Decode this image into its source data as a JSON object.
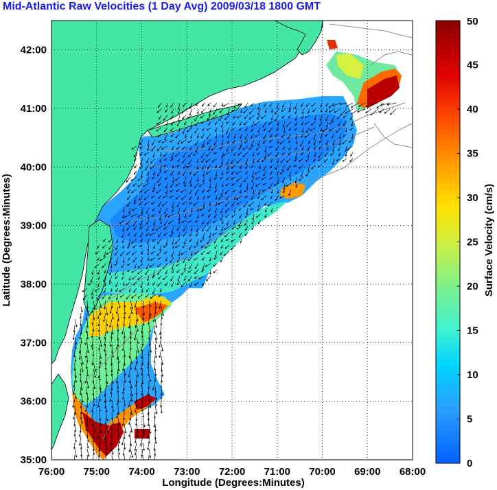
{
  "title": "Mid-Atlantic Raw Velocities (1 Day Avg) 2009/03/18 1800 GMT",
  "map": {
    "xlabel": "Longitude (Degrees:Minutes)",
    "ylabel": "Latitude (Degrees:Minutes)",
    "x_ticks": [
      "76:00",
      "75:00",
      "74:00",
      "73:00",
      "72:00",
      "71:00",
      "70:00",
      "69:00",
      "68:00"
    ],
    "y_ticks": [
      "35:00",
      "36:00",
      "37:00",
      "38:00",
      "39:00",
      "40:00",
      "41:00",
      "42:00"
    ],
    "xlim": [
      -76,
      -68
    ],
    "ylim": [
      35,
      42.5
    ],
    "land_color": "#44e6a6",
    "grid": "dotted"
  },
  "colorbar": {
    "label": "Surface Velocity (cm/s)",
    "ticks": [
      "0",
      "5",
      "10",
      "15",
      "20",
      "25",
      "30",
      "35",
      "40",
      "45",
      "50"
    ],
    "range": [
      0,
      50
    ]
  }
}
